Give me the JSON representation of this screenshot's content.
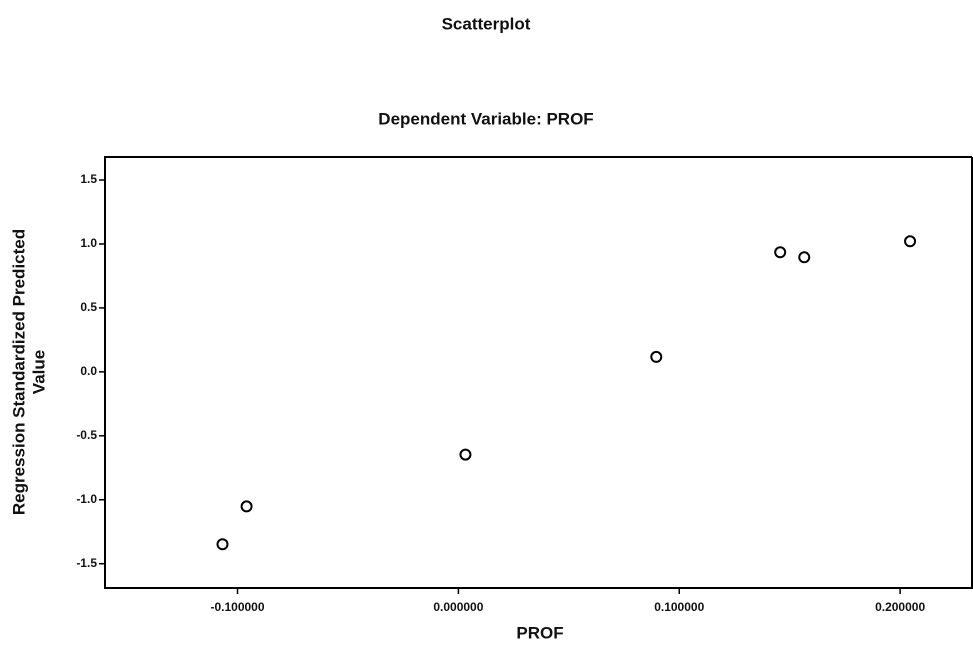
{
  "chart_data": {
    "type": "scatter",
    "title": "Scatterplot",
    "subtitle": "Dependent Variable: PROF",
    "xlabel": "PROF",
    "ylabel": [
      "Regression Standardized Predicted",
      "Value"
    ],
    "x": [
      -0.1068,
      -0.0959,
      0.0032,
      0.0896,
      0.1457,
      0.1566,
      0.2045
    ],
    "values": [
      -1.348,
      -1.052,
      -0.647,
      0.117,
      0.935,
      0.896,
      1.021
    ],
    "color": "#000000",
    "xlim": [
      -0.16,
      0.233
    ],
    "ylim": [
      -1.69,
      1.68
    ],
    "xticks": [
      {
        "value": -0.1,
        "label": "-0.100000"
      },
      {
        "value": 0,
        "label": "0.000000"
      },
      {
        "value": 0.1,
        "label": "0.100000"
      },
      {
        "value": 0.2,
        "label": "0.200000"
      }
    ],
    "yticks": [
      1.5,
      {
        "value": 1,
        "label": "1.0"
      },
      0.5,
      {
        "value": 0,
        "label": "0.0"
      },
      -0.5,
      {
        "value": -1,
        "label": "-1.0"
      },
      -1.5
    ],
    "grid": false
  }
}
